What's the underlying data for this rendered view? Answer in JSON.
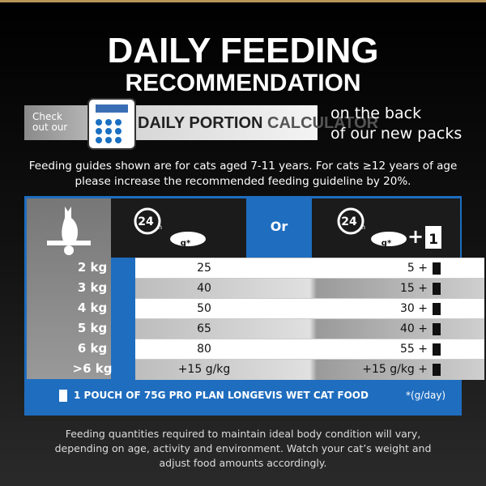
{
  "header": {
    "title_line1": "DAILY FEEDING",
    "title_line2": "RECOMMENDATION"
  },
  "banner": {
    "check_line1": "Check",
    "check_line2": "out our",
    "calc_bold": "DAILY PORTION",
    "calc_light": "CALCULATOR",
    "back_line1": "on the back",
    "back_line2": "of our new packs"
  },
  "intro": {
    "line1": "Feeding guides shown are for cats aged 7-11 years. For cats ≥12 years of age",
    "line2": "please increase the recommended feeding guideline by 20%."
  },
  "table": {
    "header": {
      "dry_hours": "24",
      "dry_unit": "h",
      "dry_grams": "g*",
      "or": "Or",
      "wet_hours": "24",
      "wet_unit": "h",
      "wet_grams": "g*",
      "plus": "+",
      "pouch": "1"
    },
    "rows": [
      [
        "2 kg",
        "25",
        "5 +"
      ],
      [
        "3 kg",
        "40",
        "15 +"
      ],
      [
        "4 kg",
        "50",
        "30 +"
      ],
      [
        "5 kg",
        "65",
        "40 +"
      ],
      [
        "6 kg",
        "80",
        "55 +"
      ],
      [
        ">6 kg",
        "+15 g/kg",
        "+15 g/kg +"
      ]
    ],
    "footer": "1 POUCH OF 75G PRO PLAN LONGEVIS WET CAT FOOD",
    "unit_note": "*(g/day)"
  },
  "outro": {
    "line1": "Feeding quantities required to maintain ideal body condition will vary,",
    "line2": "depending on age, activity and environment. Watch your cat’s weight and",
    "line3": "adjust food amounts accordingly."
  }
}
